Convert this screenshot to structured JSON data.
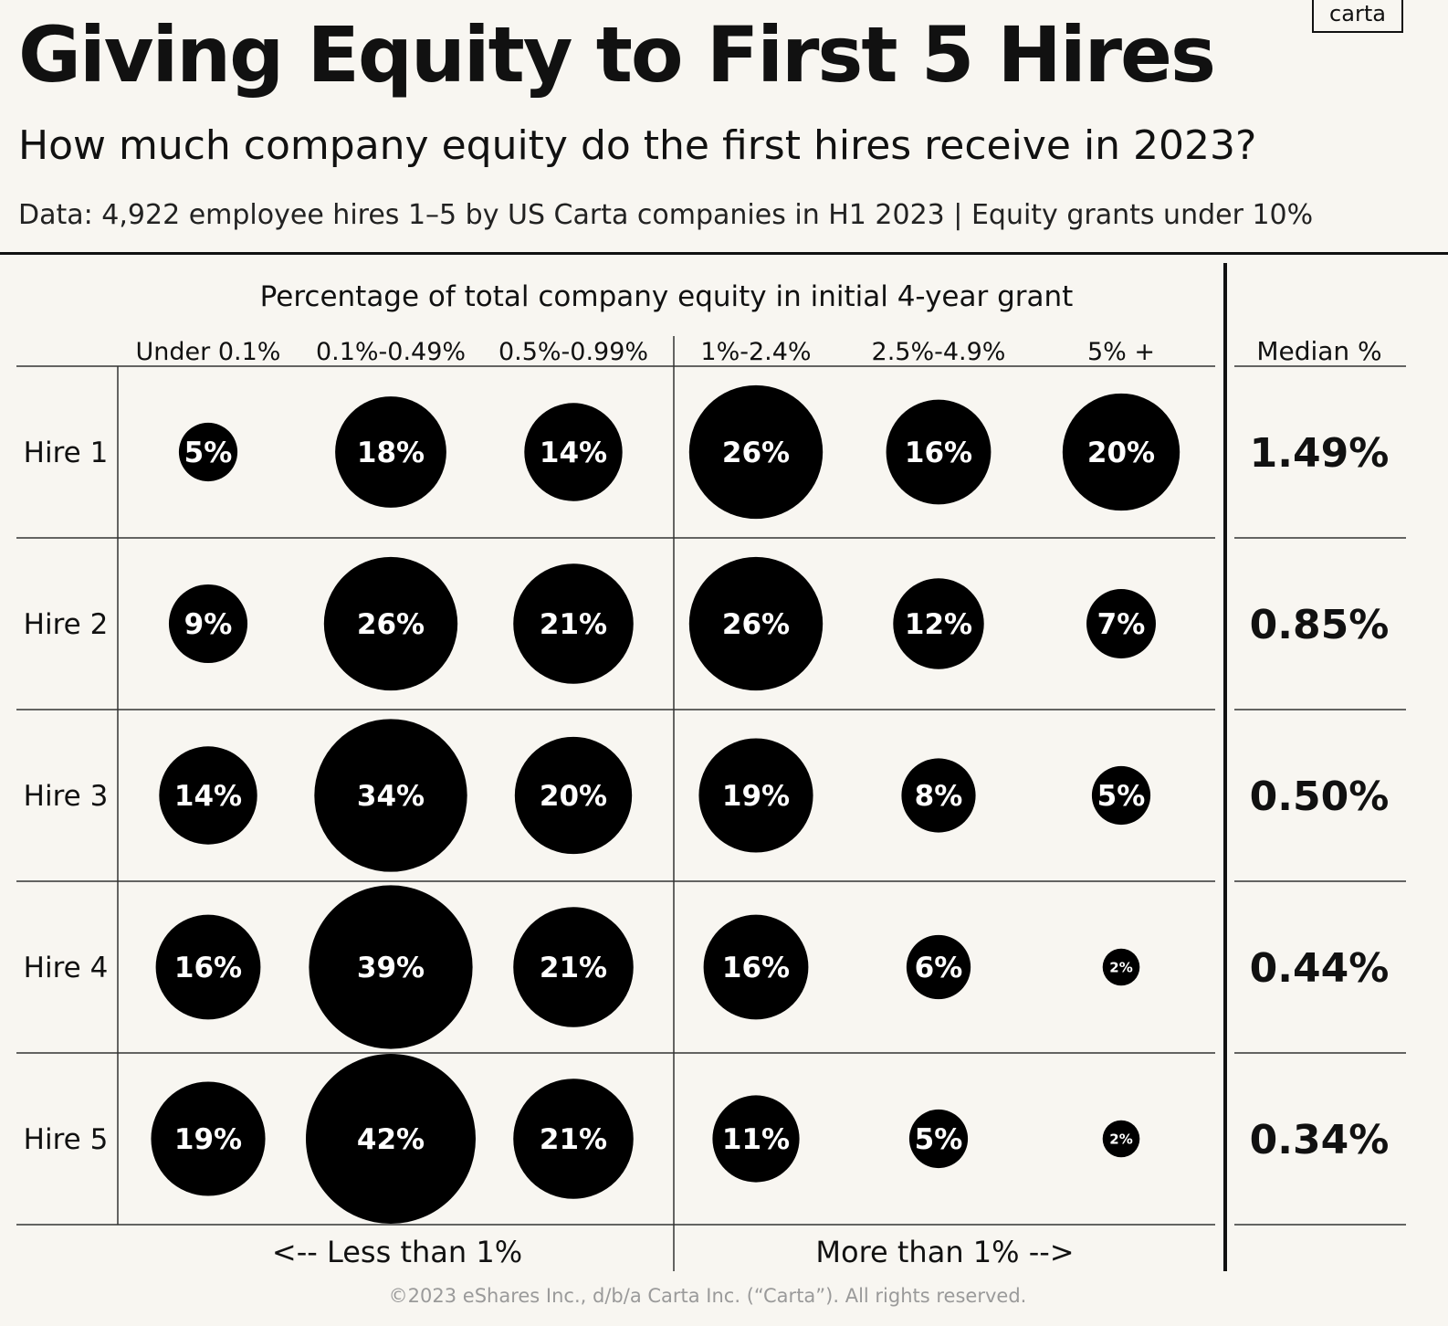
{
  "header": {
    "title": "Giving Equity to First 5 Hires",
    "subtitle": "How much company equity do the first hires receive in 2023?",
    "source": "Data: 4,922 employee hires 1–5 by US Carta companies in H1 2023 | Equity grants under 10%",
    "logo_text": "carta"
  },
  "footer": {
    "less_label": "<-- Less than 1%",
    "more_label": "More than 1% -->",
    "copyright": "©2023 eShares Inc., d/b/a Carta Inc. (“Carta”). All rights reserved."
  },
  "chart_data": {
    "type": "bubble-matrix",
    "column_group_title": "Percentage of total company equity in initial 4-year grant",
    "columns": [
      "Under 0.1%",
      "0.1%-0.49%",
      "0.5%-0.99%",
      "1%-2.4%",
      "2.5%-4.9%",
      "5% +"
    ],
    "rows": [
      "Hire 1",
      "Hire 2",
      "Hire 3",
      "Hire 4",
      "Hire 5"
    ],
    "values": [
      [
        5,
        18,
        14,
        26,
        16,
        20
      ],
      [
        9,
        26,
        21,
        26,
        12,
        7
      ],
      [
        14,
        34,
        20,
        19,
        8,
        5
      ],
      [
        16,
        39,
        21,
        16,
        6,
        2
      ],
      [
        19,
        42,
        21,
        11,
        5,
        2
      ]
    ],
    "value_suffix": "%",
    "median_header": "Median %",
    "medians": [
      "1.49%",
      "0.85%",
      "0.50%",
      "0.44%",
      "0.34%"
    ],
    "colors": {
      "bubble": "#000000",
      "bubble_text": "#ffffff",
      "background": "#f8f6f1"
    }
  }
}
